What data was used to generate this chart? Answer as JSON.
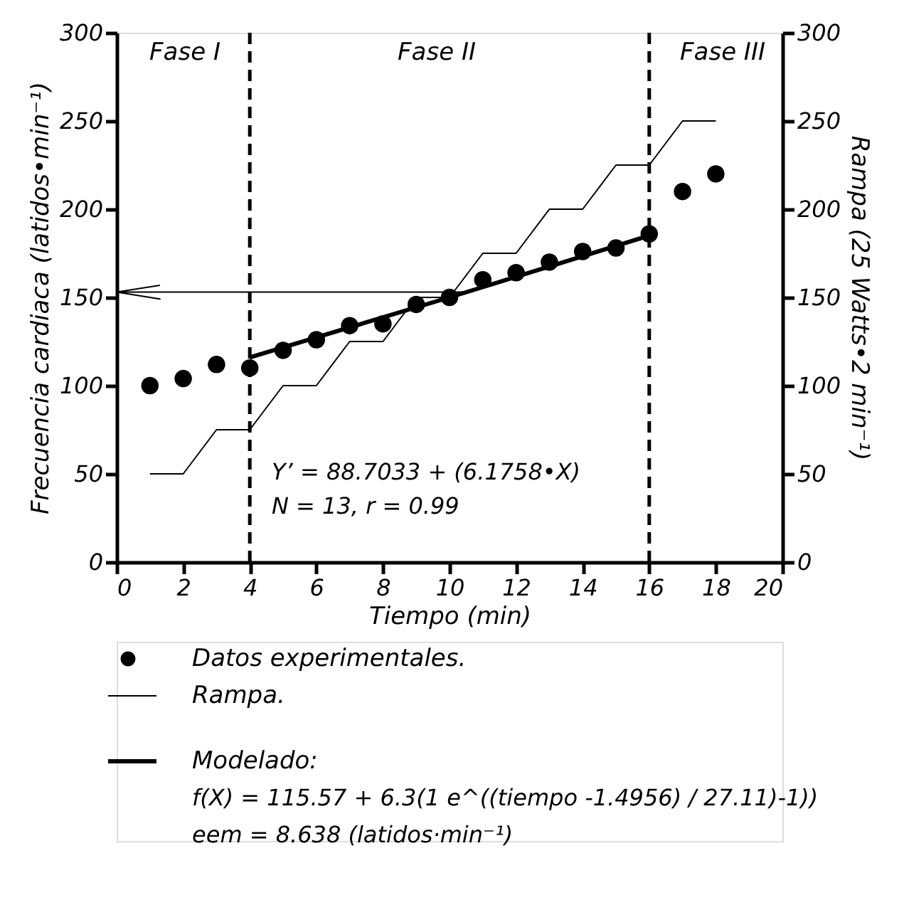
{
  "chart_data": {
    "type": "scatter",
    "xlabel": "Tiempo (min)",
    "ylabel": "Frecuencia cardiaca (latidos•min⁻¹)",
    "y2label": "Rampa (25 Watts•2 min⁻¹)",
    "xlim": [
      0,
      20
    ],
    "xticks": [
      0,
      2,
      4,
      6,
      8,
      10,
      12,
      14,
      16,
      18,
      20
    ],
    "ylim": [
      0,
      300
    ],
    "yticks": [
      0,
      50,
      100,
      150,
      200,
      250,
      300
    ],
    "y2lim": [
      0,
      300
    ],
    "y2ticks": [
      0,
      50,
      100,
      150,
      200,
      250,
      300
    ],
    "grid": false,
    "legend": "bottom",
    "series": [
      {
        "name": "Datos experimentales.",
        "marker": "circle",
        "color": "#000000",
        "x": [
          1,
          2,
          3,
          4,
          5,
          6,
          7,
          8,
          9,
          10,
          11,
          12,
          13,
          14,
          15,
          16,
          17,
          18
        ],
        "values": [
          100,
          104,
          112,
          110,
          120,
          126,
          134,
          135,
          146,
          150,
          160,
          164,
          170,
          176,
          178,
          186,
          210,
          220
        ]
      },
      {
        "name": "Rampa.",
        "type": "line",
        "axis": "y2",
        "line_style": "solid",
        "color": "#000000",
        "x": [
          1,
          2,
          3,
          4,
          5,
          6,
          7,
          8,
          9,
          10,
          11,
          12,
          13,
          14,
          15,
          16,
          17,
          18
        ],
        "values": [
          50,
          50,
          75,
          75,
          100,
          100,
          125,
          125,
          150,
          150,
          175,
          175,
          200,
          200,
          225,
          225,
          250,
          250
        ]
      },
      {
        "name": "Modelado:",
        "type": "line",
        "line_style": "solid",
        "color": "#000000",
        "x": [
          4,
          10,
          16
        ],
        "values": [
          116,
          150,
          185
        ]
      }
    ],
    "ref_lines": [
      {
        "axis": "x",
        "value": 4,
        "line_style": "dashed",
        "color": "#000000"
      },
      {
        "axis": "x",
        "value": 16,
        "line_style": "dashed",
        "color": "#000000"
      },
      {
        "axis": "y",
        "value": 153,
        "line_style": "solid",
        "color": "#000000"
      }
    ],
    "annotations": [
      "Fase I",
      "Fase II",
      "Fase III",
      "Y’ = 88.7033 + (6.1758•X)",
      "N = 13, r = 0.99",
      "f(X) = 115.57 + 6.3(1 e^((tiempo -1.4956) / 27.11)-1))",
      "eem = 8.638 (latidos·min⁻¹)"
    ]
  }
}
